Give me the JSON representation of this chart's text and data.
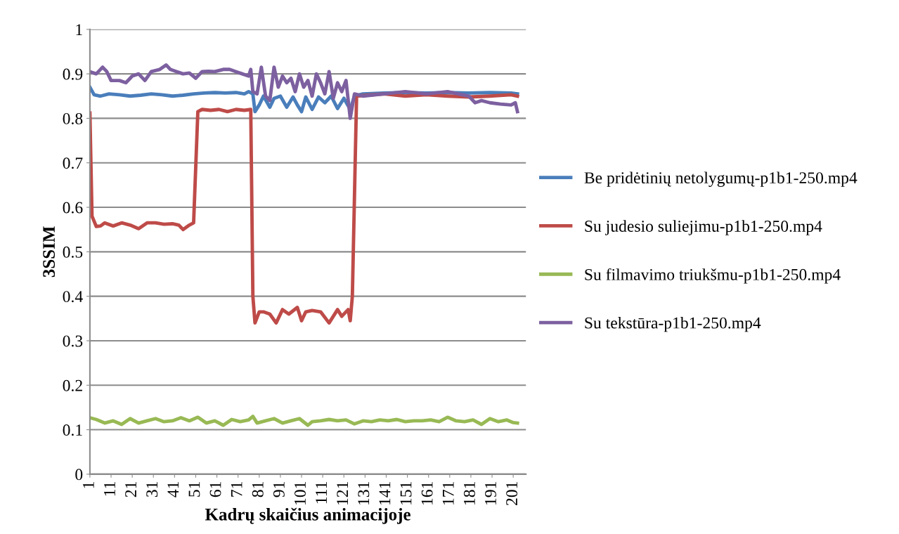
{
  "chart_data": {
    "type": "line",
    "xlabel": "Kadrų skaičius animacijoje",
    "ylabel": "3SSIM",
    "xlim": [
      1,
      207
    ],
    "xticks": [
      1,
      11,
      21,
      31,
      41,
      51,
      61,
      71,
      81,
      91,
      101,
      111,
      121,
      131,
      141,
      151,
      161,
      171,
      181,
      191,
      201
    ],
    "ylim": [
      0,
      1
    ],
    "yticks": [
      0,
      0.1,
      0.2,
      0.3,
      0.4,
      0.5,
      0.6,
      0.7,
      0.8,
      0.9,
      1
    ],
    "grid": "y",
    "legend": "right",
    "marker": "none",
    "line_style": "solid",
    "series": [
      {
        "name": "Be pridėtinių netolygumų-p1b1-250.mp4",
        "color": "#4a7ebb",
        "x": [
          1,
          3,
          6,
          10,
          15,
          20,
          25,
          30,
          35,
          40,
          45,
          50,
          55,
          60,
          65,
          70,
          74,
          76,
          78,
          79,
          81,
          83,
          86,
          88,
          91,
          94,
          97,
          99,
          101,
          103,
          106,
          109,
          112,
          115,
          118,
          121,
          124,
          126,
          130,
          140,
          150,
          160,
          170,
          180,
          190,
          200,
          203
        ],
        "values": [
          0.87,
          0.853,
          0.85,
          0.855,
          0.853,
          0.85,
          0.852,
          0.855,
          0.853,
          0.85,
          0.852,
          0.855,
          0.857,
          0.858,
          0.857,
          0.858,
          0.855,
          0.86,
          0.855,
          0.815,
          0.83,
          0.85,
          0.825,
          0.845,
          0.85,
          0.825,
          0.848,
          0.83,
          0.815,
          0.848,
          0.82,
          0.848,
          0.835,
          0.85,
          0.822,
          0.845,
          0.82,
          0.85,
          0.855,
          0.857,
          0.858,
          0.857,
          0.858,
          0.857,
          0.858,
          0.857,
          0.855
        ]
      },
      {
        "name": "Su judesio suliejimu-p1b1-250.mp4",
        "color": "#be4b48",
        "x": [
          1,
          2,
          4,
          6,
          8,
          12,
          16,
          20,
          24,
          28,
          32,
          36,
          40,
          43,
          45,
          48,
          50,
          52,
          54,
          58,
          62,
          66,
          70,
          74,
          77,
          78,
          79,
          81,
          83,
          86,
          89,
          92,
          95,
          99,
          101,
          103,
          106,
          110,
          114,
          118,
          120,
          123,
          124,
          125,
          127,
          132,
          140,
          150,
          160,
          170,
          180,
          190,
          200,
          203
        ],
        "values": [
          0.812,
          0.58,
          0.557,
          0.558,
          0.565,
          0.558,
          0.565,
          0.56,
          0.552,
          0.565,
          0.565,
          0.562,
          0.563,
          0.56,
          0.55,
          0.56,
          0.565,
          0.815,
          0.82,
          0.818,
          0.82,
          0.815,
          0.82,
          0.818,
          0.82,
          0.4,
          0.34,
          0.365,
          0.365,
          0.36,
          0.34,
          0.37,
          0.36,
          0.375,
          0.345,
          0.365,
          0.368,
          0.365,
          0.34,
          0.37,
          0.355,
          0.37,
          0.345,
          0.4,
          0.85,
          0.852,
          0.855,
          0.85,
          0.853,
          0.85,
          0.848,
          0.85,
          0.853,
          0.85
        ]
      },
      {
        "name": "Su filmavimo triukšmu-p1b1-250.mp4",
        "color": "#98b954",
        "x": [
          1,
          4,
          8,
          12,
          16,
          20,
          24,
          28,
          32,
          36,
          40,
          44,
          48,
          52,
          56,
          60,
          64,
          68,
          72,
          76,
          78,
          80,
          84,
          88,
          92,
          96,
          100,
          104,
          106,
          110,
          114,
          118,
          122,
          126,
          130,
          134,
          138,
          142,
          146,
          150,
          154,
          158,
          162,
          166,
          170,
          174,
          178,
          182,
          186,
          190,
          194,
          198,
          201,
          203
        ],
        "values": [
          0.127,
          0.123,
          0.115,
          0.12,
          0.112,
          0.125,
          0.115,
          0.12,
          0.125,
          0.118,
          0.12,
          0.127,
          0.12,
          0.128,
          0.115,
          0.12,
          0.11,
          0.123,
          0.118,
          0.122,
          0.13,
          0.115,
          0.12,
          0.125,
          0.115,
          0.12,
          0.125,
          0.11,
          0.118,
          0.12,
          0.123,
          0.12,
          0.122,
          0.113,
          0.12,
          0.118,
          0.122,
          0.12,
          0.123,
          0.118,
          0.12,
          0.12,
          0.122,
          0.118,
          0.128,
          0.12,
          0.118,
          0.122,
          0.112,
          0.125,
          0.118,
          0.122,
          0.116,
          0.115
        ]
      },
      {
        "name": "Su tekstūra-p1b1-250.mp4",
        "color": "#7d60a0",
        "x": [
          1,
          4,
          7,
          9,
          11,
          15,
          18,
          21,
          24,
          27,
          30,
          34,
          37,
          39,
          42,
          45,
          48,
          51,
          54,
          57,
          60,
          64,
          67,
          70,
          73,
          76,
          77,
          78,
          80,
          82,
          84,
          86,
          88,
          90,
          92,
          94,
          96,
          98,
          100,
          102,
          104,
          106,
          108,
          110,
          112,
          114,
          116,
          118,
          120,
          122,
          124,
          126,
          130,
          140,
          150,
          160,
          170,
          180,
          183,
          186,
          190,
          195,
          200,
          202,
          203
        ],
        "values": [
          0.905,
          0.9,
          0.915,
          0.905,
          0.885,
          0.885,
          0.88,
          0.895,
          0.9,
          0.885,
          0.905,
          0.91,
          0.92,
          0.91,
          0.905,
          0.9,
          0.902,
          0.89,
          0.905,
          0.906,
          0.905,
          0.91,
          0.91,
          0.905,
          0.9,
          0.895,
          0.91,
          0.86,
          0.855,
          0.915,
          0.85,
          0.84,
          0.915,
          0.87,
          0.895,
          0.88,
          0.89,
          0.86,
          0.9,
          0.87,
          0.885,
          0.85,
          0.9,
          0.88,
          0.855,
          0.905,
          0.845,
          0.88,
          0.86,
          0.885,
          0.8,
          0.855,
          0.85,
          0.855,
          0.86,
          0.855,
          0.86,
          0.85,
          0.835,
          0.84,
          0.835,
          0.832,
          0.83,
          0.835,
          0.815
        ]
      }
    ]
  }
}
